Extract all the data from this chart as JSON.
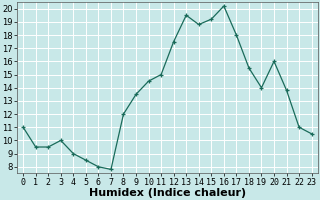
{
  "x": [
    0,
    1,
    2,
    3,
    4,
    5,
    6,
    7,
    8,
    9,
    10,
    11,
    12,
    13,
    14,
    15,
    16,
    17,
    18,
    19,
    20,
    21,
    22,
    23
  ],
  "y": [
    11,
    9.5,
    9.5,
    10,
    9,
    8.5,
    8,
    7.8,
    12,
    13.5,
    14.5,
    15,
    17.5,
    19.5,
    18.8,
    19.2,
    20.2,
    18,
    15.5,
    14,
    16,
    13.8,
    11,
    10.5
  ],
  "line_color": "#1a6b5a",
  "marker_color": "#1a6b5a",
  "bg_color": "#c8e8e8",
  "grid_color": "#ffffff",
  "xlabel": "Humidex (Indice chaleur)",
  "xlim": [
    -0.5,
    23.5
  ],
  "ylim": [
    7.5,
    20.5
  ],
  "yticks": [
    8,
    9,
    10,
    11,
    12,
    13,
    14,
    15,
    16,
    17,
    18,
    19,
    20
  ],
  "xticks": [
    0,
    1,
    2,
    3,
    4,
    5,
    6,
    7,
    8,
    9,
    10,
    11,
    12,
    13,
    14,
    15,
    16,
    17,
    18,
    19,
    20,
    21,
    22,
    23
  ],
  "xlabel_fontsize": 8,
  "tick_fontsize": 6
}
